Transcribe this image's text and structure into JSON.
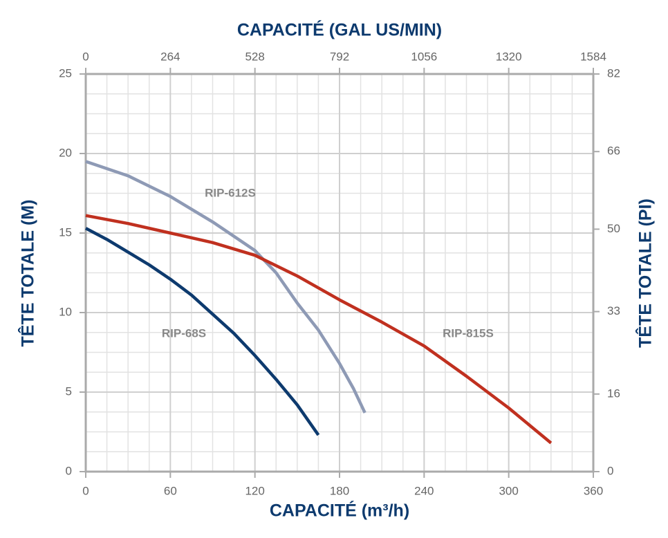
{
  "chart_data": {
    "type": "line",
    "x_label": "CAPACITÉ (m³/h)",
    "x2_label": "CAPACITÉ (GAL US/MIN)",
    "y_label": "TÊTE TOTALE (M)",
    "y2_label": "TÊTE TOTALE (PI)",
    "xlim": [
      0,
      360
    ],
    "xticks": [
      0,
      60,
      120,
      180,
      240,
      300,
      360
    ],
    "x2lim": [
      0,
      1584
    ],
    "x2ticks": [
      0,
      264,
      528,
      792,
      1056,
      1320,
      1584
    ],
    "ylim": [
      0,
      25
    ],
    "yticks": [
      0,
      5,
      10,
      15,
      20,
      25
    ],
    "y2lim": [
      0,
      82
    ],
    "y2ticks": [
      0,
      16,
      33,
      50,
      66,
      82
    ],
    "grid": true,
    "minor_grid": true,
    "series": [
      {
        "name": "RIP-68S",
        "color": "#0d3a6e",
        "x": [
          0,
          15,
          30,
          45,
          60,
          75,
          90,
          105,
          120,
          135,
          150,
          165
        ],
        "values": [
          15.3,
          14.6,
          13.8,
          13.0,
          12.1,
          11.1,
          9.9,
          8.7,
          7.3,
          5.8,
          4.2,
          2.3
        ]
      },
      {
        "name": "RIP-612S",
        "color": "#8e9ab5",
        "x": [
          0,
          30,
          60,
          90,
          120,
          135,
          150,
          165,
          180,
          190,
          198
        ],
        "values": [
          19.5,
          18.6,
          17.3,
          15.7,
          13.9,
          12.5,
          10.6,
          8.9,
          6.8,
          5.2,
          3.7
        ]
      },
      {
        "name": "RIP-815S",
        "color": "#c0301f",
        "x": [
          0,
          30,
          60,
          90,
          120,
          150,
          180,
          210,
          240,
          270,
          300,
          330
        ],
        "values": [
          16.1,
          15.6,
          15.0,
          14.4,
          13.6,
          12.3,
          10.8,
          9.4,
          7.9,
          6.0,
          4.0,
          1.8
        ]
      }
    ]
  }
}
